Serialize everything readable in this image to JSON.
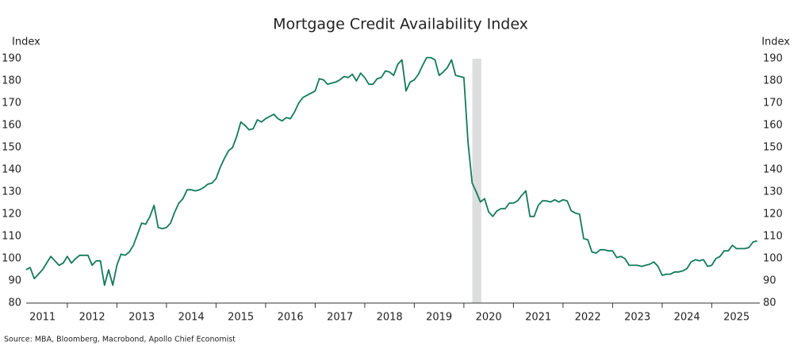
{
  "chart_data": {
    "type": "line",
    "title": "Mortgage Credit Availability Index",
    "y_label": "Index",
    "y2_label": "Index",
    "source": "Source: MBA, Bloomberg, Macrobond, Apollo Chief Economist",
    "xlim": [
      2011.17,
      2025.97
    ],
    "xticks": [
      {
        "value": 2011.5,
        "label": "2011"
      },
      {
        "value": 2012.5,
        "label": "2012"
      },
      {
        "value": 2013.5,
        "label": "2013"
      },
      {
        "value": 2014.5,
        "label": "2014"
      },
      {
        "value": 2015.5,
        "label": "2015"
      },
      {
        "value": 2016.5,
        "label": "2016"
      },
      {
        "value": 2017.5,
        "label": "2017"
      },
      {
        "value": 2018.5,
        "label": "2018"
      },
      {
        "value": 2019.5,
        "label": "2019"
      },
      {
        "value": 2020.5,
        "label": "2020"
      },
      {
        "value": 2021.5,
        "label": "2021"
      },
      {
        "value": 2022.5,
        "label": "2022"
      },
      {
        "value": 2023.5,
        "label": "2023"
      },
      {
        "value": 2024.5,
        "label": "2024"
      },
      {
        "value": 2025.5,
        "label": "2025"
      }
    ],
    "xtick_marks": [
      2012,
      2013,
      2014,
      2015,
      2016,
      2017,
      2018,
      2019,
      2020,
      2021,
      2022,
      2023,
      2024,
      2025
    ],
    "ylim": [
      80,
      190
    ],
    "yticks": [
      80,
      90,
      100,
      110,
      120,
      130,
      140,
      150,
      160,
      170,
      180,
      190
    ],
    "y2lim": [
      80,
      190
    ],
    "y2ticks": [
      80,
      90,
      100,
      110,
      120,
      130,
      140,
      150,
      160,
      170,
      180,
      190
    ],
    "grid": false,
    "shaded_span": [
      2020.17,
      2020.35
    ],
    "shade_color": "#dcdedd",
    "x": [
      2011.167,
      2011.25,
      2011.333,
      2011.417,
      2011.5,
      2011.583,
      2011.667,
      2011.75,
      2011.833,
      2011.917,
      2012.0,
      2012.083,
      2012.167,
      2012.25,
      2012.333,
      2012.417,
      2012.5,
      2012.583,
      2012.667,
      2012.75,
      2012.833,
      2012.917,
      2013.0,
      2013.083,
      2013.167,
      2013.25,
      2013.333,
      2013.417,
      2013.5,
      2013.583,
      2013.667,
      2013.75,
      2013.833,
      2013.917,
      2014.0,
      2014.083,
      2014.167,
      2014.25,
      2014.333,
      2014.417,
      2014.5,
      2014.583,
      2014.667,
      2014.75,
      2014.833,
      2014.917,
      2015.0,
      2015.083,
      2015.167,
      2015.25,
      2015.333,
      2015.417,
      2015.5,
      2015.583,
      2015.667,
      2015.75,
      2015.833,
      2015.917,
      2016.0,
      2016.083,
      2016.167,
      2016.25,
      2016.333,
      2016.417,
      2016.5,
      2016.583,
      2016.667,
      2016.75,
      2016.833,
      2016.917,
      2017.0,
      2017.083,
      2017.167,
      2017.25,
      2017.333,
      2017.417,
      2017.5,
      2017.583,
      2017.667,
      2017.75,
      2017.833,
      2017.917,
      2018.0,
      2018.083,
      2018.167,
      2018.25,
      2018.333,
      2018.417,
      2018.5,
      2018.583,
      2018.667,
      2018.75,
      2018.833,
      2018.917,
      2019.0,
      2019.083,
      2019.167,
      2019.25,
      2019.333,
      2019.417,
      2019.5,
      2019.583,
      2019.667,
      2019.75,
      2019.833,
      2019.917,
      2020.0,
      2020.083,
      2020.167,
      2020.25,
      2020.333,
      2020.417,
      2020.5,
      2020.583,
      2020.667,
      2020.75,
      2020.833,
      2020.917,
      2021.0,
      2021.083,
      2021.167,
      2021.25,
      2021.333,
      2021.417,
      2021.5,
      2021.583,
      2021.667,
      2021.75,
      2021.833,
      2021.917,
      2022.0,
      2022.083,
      2022.167,
      2022.25,
      2022.333,
      2022.417,
      2022.5,
      2022.583,
      2022.667,
      2022.75,
      2022.833,
      2022.917,
      2023.0,
      2023.083,
      2023.167,
      2023.25,
      2023.333,
      2023.417,
      2023.5,
      2023.583,
      2023.667,
      2023.75,
      2023.833,
      2023.917,
      2024.0,
      2024.083,
      2024.167,
      2024.25,
      2024.333,
      2024.417,
      2024.5,
      2024.583,
      2024.667,
      2024.75,
      2024.833,
      2024.917,
      2025.0,
      2025.083,
      2025.167,
      2025.25,
      2025.333,
      2025.417,
      2025.5,
      2025.583,
      2025.667,
      2025.75,
      2025.833,
      2025.917
    ],
    "series": [
      {
        "name": "Mortgage Credit Availability Index",
        "color": "#137a5c",
        "values": [
          95,
          96,
          91,
          93,
          95,
          98,
          101,
          99,
          97,
          98,
          101,
          98,
          100,
          101.5,
          101.5,
          101.5,
          97,
          99,
          99,
          88,
          95,
          88,
          97,
          102,
          101.5,
          103,
          106,
          111,
          116,
          115.5,
          119,
          124,
          114,
          113.5,
          114,
          116,
          121,
          125,
          127,
          131,
          131,
          130.5,
          131,
          132,
          133.5,
          134,
          136,
          141,
          145,
          148.5,
          150,
          155,
          161.5,
          160,
          158,
          158.5,
          162.5,
          161.5,
          163,
          164,
          165,
          163,
          162,
          163.5,
          163,
          166,
          170,
          172.5,
          173.5,
          174.5,
          175.5,
          181,
          180.5,
          178.5,
          179,
          179.5,
          180.5,
          182,
          181.5,
          183,
          180,
          183.5,
          181.5,
          178.5,
          178.5,
          181,
          181.5,
          184.5,
          184,
          182.5,
          187.5,
          189.5,
          175.5,
          179.5,
          180.5,
          183,
          187,
          190.5,
          190.5,
          189.5,
          182.5,
          184,
          186,
          189.5,
          182.5,
          182,
          181.5,
          152.5,
          134,
          130,
          125.5,
          127,
          121,
          119,
          121.5,
          122.5,
          122.5,
          125,
          125,
          126,
          128.5,
          130.5,
          119,
          119,
          124,
          126,
          126,
          125.5,
          126.5,
          125.5,
          126.5,
          126,
          121.5,
          120.5,
          120,
          109,
          108.5,
          103,
          102.5,
          104,
          104,
          103.5,
          103.5,
          100.5,
          101,
          100,
          97,
          97,
          97,
          96.5,
          97,
          97.5,
          98.5,
          96.5,
          92.5,
          93,
          93,
          94,
          94,
          94.5,
          95.5,
          98.5,
          99.5,
          99,
          99.5,
          96.5,
          97,
          100,
          101,
          103.5,
          103.5,
          106,
          104.5,
          104.5,
          104.5,
          105,
          107.5,
          108
        ]
      }
    ]
  }
}
